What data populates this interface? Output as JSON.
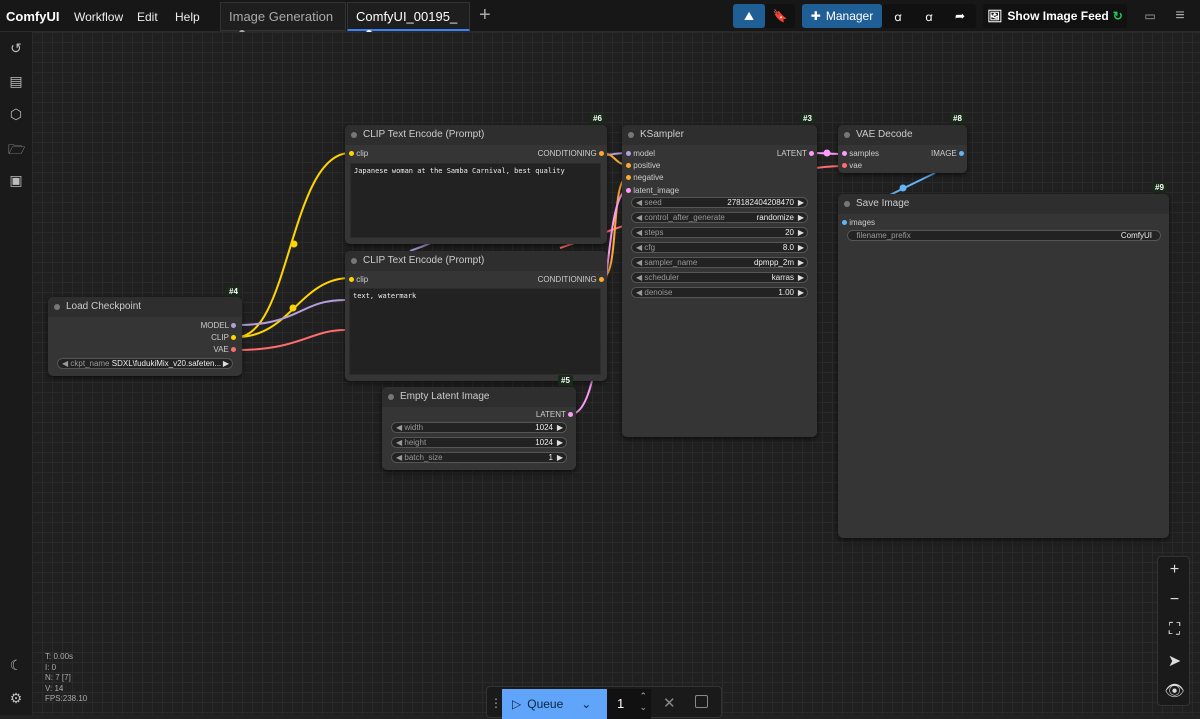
{
  "app": {
    "title": "ComfyUI",
    "menu": [
      "Workflow",
      "Edit",
      "Help"
    ]
  },
  "tabs": [
    {
      "label": "Image Generation",
      "active": false
    },
    {
      "label": "ComfyUI_00195_",
      "active": true
    }
  ],
  "toolbar": {
    "manager": "Manager",
    "image_feed": "Show Image Feed",
    "accent": "#1f5f95"
  },
  "sidebar": {
    "icons": [
      "history-icon",
      "queue-icon",
      "model-library-icon",
      "workflows-icon",
      "templates-icon"
    ],
    "bottom": [
      "theme-icon",
      "settings-icon"
    ]
  },
  "nodes": {
    "load_checkpoint": {
      "id": "#4",
      "title": "Load Checkpoint",
      "outputs": [
        "MODEL",
        "CLIP",
        "VAE"
      ],
      "ckpt_label": "ckpt_name",
      "ckpt_value": "SDXL\\fudukiMix_v20.safeten..."
    },
    "clip_pos": {
      "id": "#6",
      "title": "CLIP Text Encode (Prompt)",
      "input": "clip",
      "output": "CONDITIONING",
      "text": "Japanese woman at the Samba Carnival, best quality"
    },
    "clip_neg": {
      "id": "#7",
      "title": "CLIP Text Encode (Prompt)",
      "input": "clip",
      "output": "CONDITIONING",
      "text": "text, watermark"
    },
    "ksampler": {
      "id": "#3",
      "title": "KSampler",
      "inputs": [
        "model",
        "positive",
        "negative",
        "latent_image"
      ],
      "output": "LATENT",
      "widgets": [
        {
          "label": "seed",
          "value": "278182404208470"
        },
        {
          "label": "control_after_generate",
          "value": "randomize"
        },
        {
          "label": "steps",
          "value": "20"
        },
        {
          "label": "cfg",
          "value": "8.0"
        },
        {
          "label": "sampler_name",
          "value": "dpmpp_2m"
        },
        {
          "label": "scheduler",
          "value": "karras"
        },
        {
          "label": "denoise",
          "value": "1.00"
        }
      ]
    },
    "vae_decode": {
      "id": "#8",
      "title": "VAE Decode",
      "inputs": [
        "samples",
        "vae"
      ],
      "output": "IMAGE"
    },
    "save_image": {
      "id": "#9",
      "title": "Save Image",
      "input": "images",
      "prefix_label": "filename_prefix",
      "prefix_value": "ComfyUI"
    },
    "empty_latent": {
      "id": "#5",
      "title": "Empty Latent Image",
      "output": "LATENT",
      "widgets": [
        {
          "label": "width",
          "value": "1024"
        },
        {
          "label": "height",
          "value": "1024"
        },
        {
          "label": "batch_size",
          "value": "1"
        }
      ]
    }
  },
  "stats": {
    "t": "T: 0.00s",
    "i": "I: 0",
    "n": "N: 7 [7]",
    "v": "V: 14",
    "fps": "FPS:238.10"
  },
  "queue": {
    "label": "Queue",
    "count": "1"
  },
  "colors": {
    "clip": "#ffd500",
    "model": "#b39ddb",
    "vae": "#ff6e6e",
    "conditioning": "#ffa931",
    "latent": "#ff9cf9",
    "image": "#64b5f6"
  }
}
